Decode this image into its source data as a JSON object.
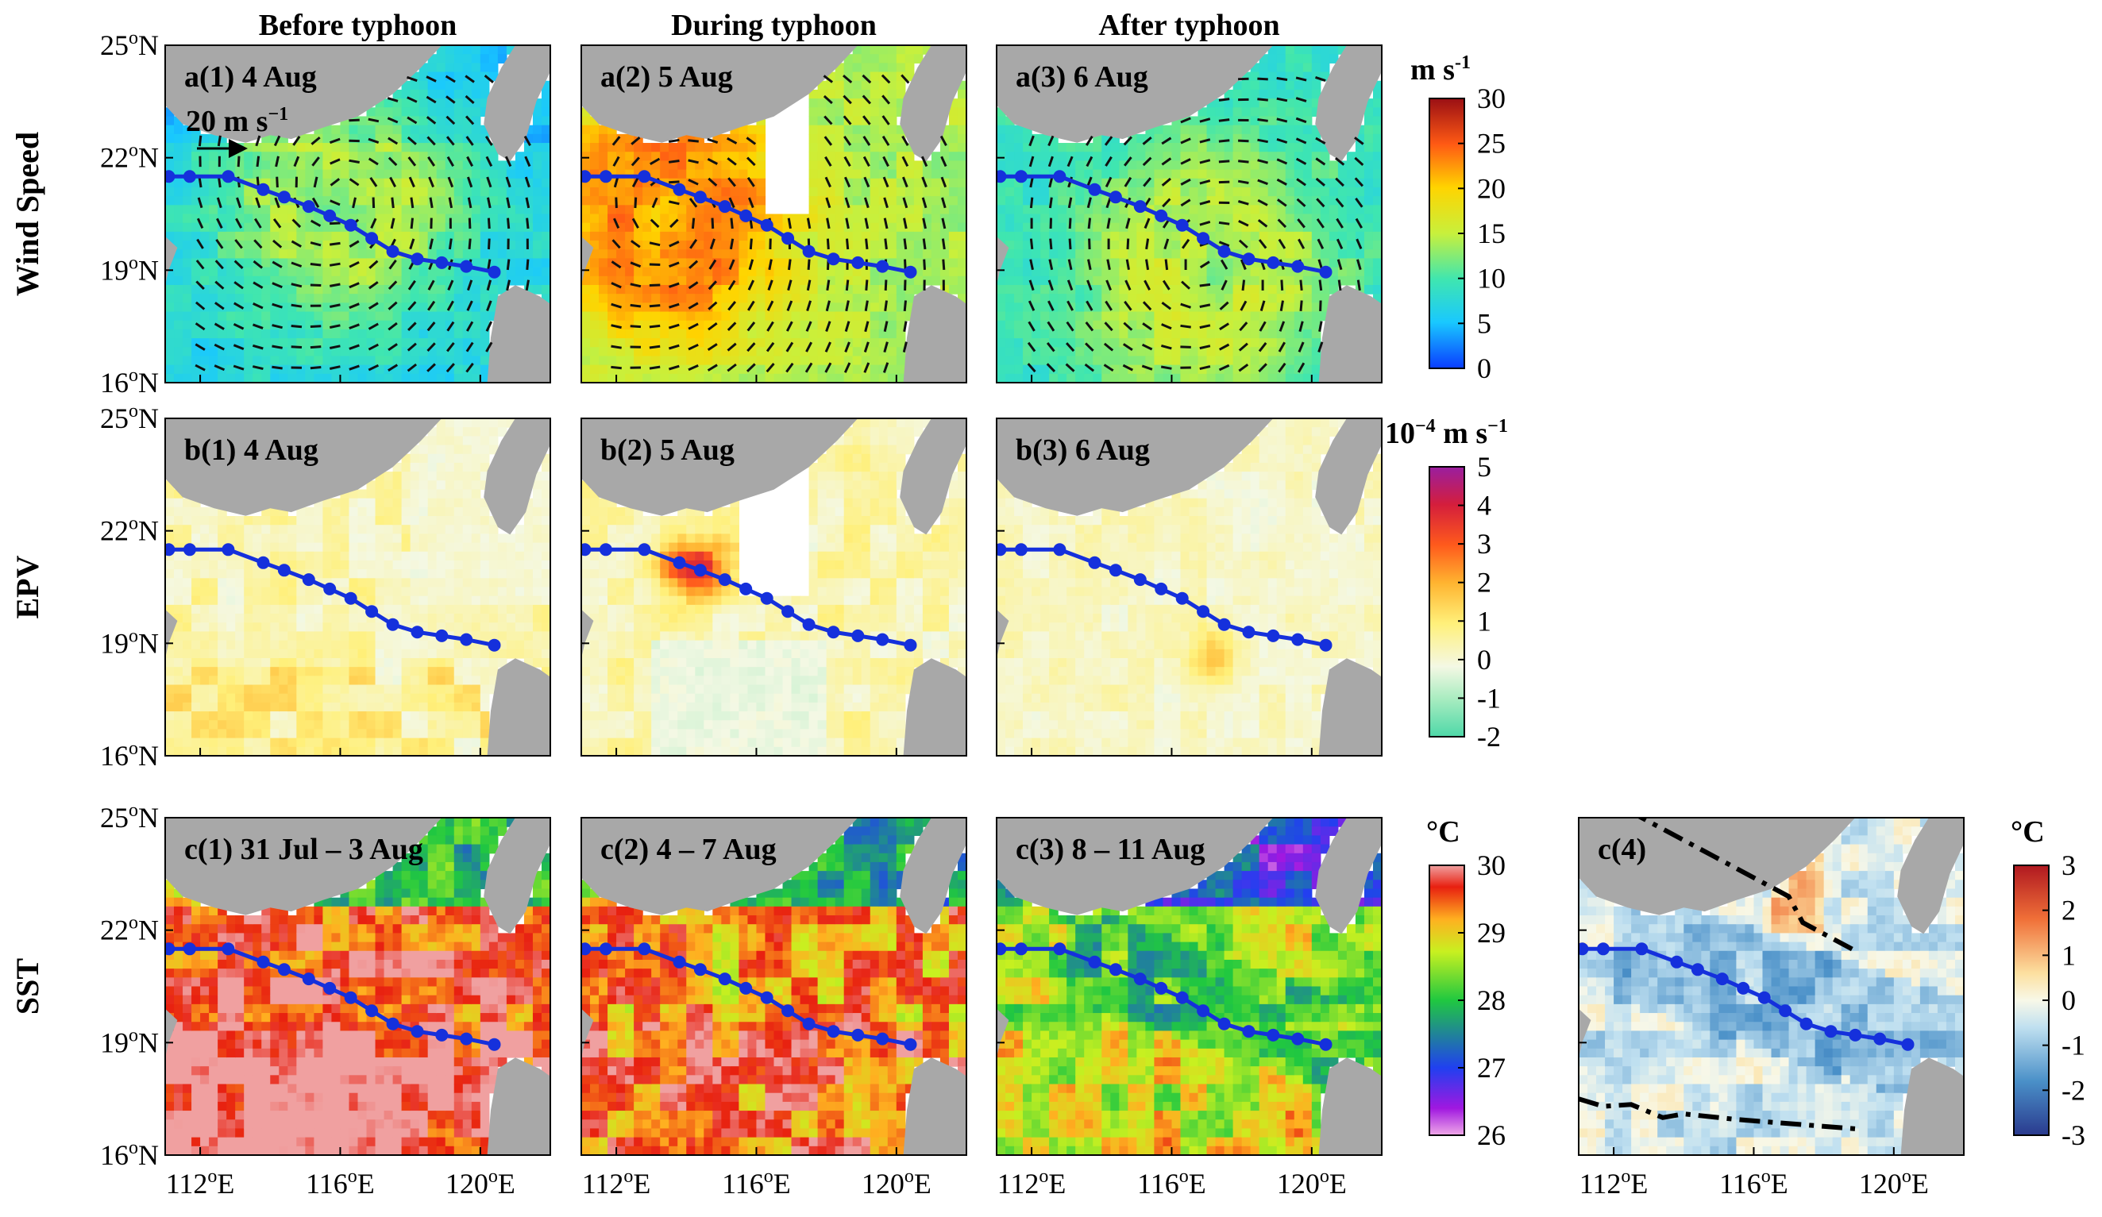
{
  "chart_data": {
    "type": "heatmap",
    "column_titles": [
      "Before typhoon",
      "During typhoon",
      "After typhoon"
    ],
    "row_labels": [
      "Wind Speed",
      "EPV",
      "SST"
    ],
    "lat_ticks": [
      "25",
      "22",
      "19",
      "16"
    ],
    "lat_tick_suffix": "N",
    "lon_ticks": [
      "112",
      "116",
      "120"
    ],
    "lon_tick_suffix": "E",
    "degree_symbol": "o",
    "extent": {
      "lon_min": 111,
      "lon_max": 122,
      "lat_min": 16,
      "lat_max": 25
    },
    "reference_arrow_label": "20 m s",
    "reference_arrow_exponent": "−1",
    "typhoon_track": [
      {
        "lon": 111.1,
        "lat": 21.5
      },
      {
        "lon": 111.7,
        "lat": 21.5
      },
      {
        "lon": 112.8,
        "lat": 21.5
      },
      {
        "lon": 113.8,
        "lat": 21.15
      },
      {
        "lon": 114.4,
        "lat": 20.95
      },
      {
        "lon": 115.1,
        "lat": 20.7
      },
      {
        "lon": 115.7,
        "lat": 20.45
      },
      {
        "lon": 116.3,
        "lat": 20.2
      },
      {
        "lon": 116.9,
        "lat": 19.85
      },
      {
        "lon": 117.5,
        "lat": 19.5
      },
      {
        "lon": 118.2,
        "lat": 19.3
      },
      {
        "lon": 118.9,
        "lat": 19.2
      },
      {
        "lon": 119.6,
        "lat": 19.1
      },
      {
        "lon": 120.4,
        "lat": 18.95
      }
    ],
    "rows": [
      {
        "name": "Wind Speed",
        "unit": "m s",
        "unit_exponent": "-1",
        "colorbar_ticks": [
          "30",
          "25",
          "20",
          "15",
          "10",
          "5",
          "0"
        ],
        "range": [
          0,
          30
        ],
        "panels": [
          {
            "label": "a(1) 4 Aug",
            "typhoon_center": {
              "lon": 116.0,
              "lat": 21.0
            },
            "peak": 14,
            "background": 7,
            "reference_arrow": true
          },
          {
            "label": "a(2) 5 Aug",
            "typhoon_center": {
              "lon": 113.5,
              "lat": 20.5
            },
            "peak": 23,
            "background": 14
          },
          {
            "label": "a(3) 6 Aug",
            "typhoon_center": {
              "lon": 117.0,
              "lat": 19.0
            },
            "peak": 15,
            "background": 9
          }
        ]
      },
      {
        "name": "EPV",
        "unit": "10",
        "unit_exponent": "−4",
        "unit_suffix": " m s",
        "unit_suffix_exponent": "−1",
        "colorbar_ticks": [
          "5",
          "4",
          "3",
          "2",
          "1",
          "0",
          "-1",
          "-2"
        ],
        "range": [
          -2,
          5
        ],
        "panels": [
          {
            "label": "b(1) 4 Aug",
            "peak_value": 1.5
          },
          {
            "label": "b(2) 5 Aug",
            "peak_value": 3.5
          },
          {
            "label": "b(3) 6 Aug",
            "peak_value": 1.5
          }
        ]
      },
      {
        "name": "SST",
        "unit": "°C",
        "colorbar_ticks": [
          "30",
          "29",
          "28",
          "27",
          "26"
        ],
        "range": [
          26,
          30
        ],
        "panels": [
          {
            "label": "c(1) 31 Jul – 3 Aug",
            "mean_sst": 29.5
          },
          {
            "label": "c(2) 4 – 7 Aug",
            "mean_sst": 29.1
          },
          {
            "label": "c(3) 8 – 11 Aug",
            "mean_sst": 28.5
          },
          {
            "label": "c(4)",
            "type": "SST anomaly",
            "unit": "°C",
            "colorbar_ticks": [
              "3",
              "2",
              "1",
              "0",
              "-1",
              "-2",
              "-3"
            ],
            "range": [
              -3,
              3
            ]
          }
        ]
      }
    ]
  },
  "colors": {
    "land": "#a8a8a8",
    "track": "#1530dc",
    "dash_line": "#000000",
    "no_data": "#ffffff"
  }
}
